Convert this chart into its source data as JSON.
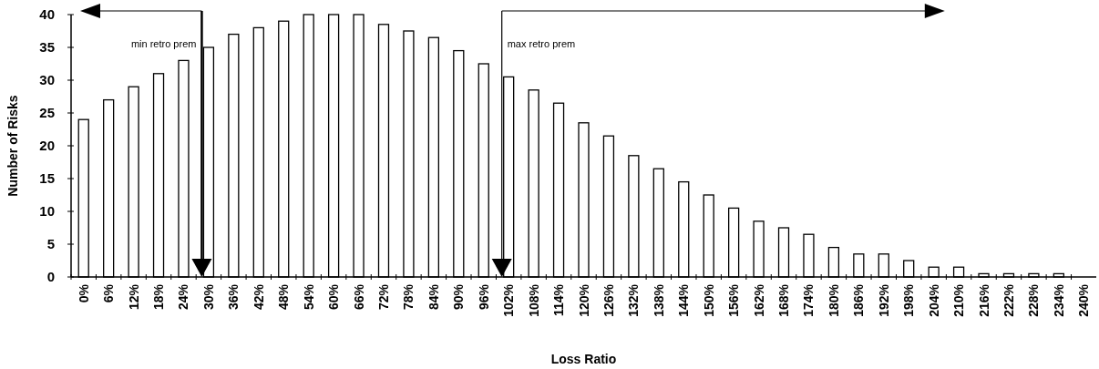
{
  "chart_data": {
    "type": "bar",
    "xlabel": "Loss Ratio",
    "ylabel": "Number of Risks",
    "categories": [
      "0%",
      "6%",
      "12%",
      "18%",
      "24%",
      "30%",
      "36%",
      "42%",
      "48%",
      "54%",
      "60%",
      "66%",
      "72%",
      "78%",
      "84%",
      "90%",
      "96%",
      "102%",
      "108%",
      "114%",
      "120%",
      "126%",
      "132%",
      "138%",
      "144%",
      "150%",
      "156%",
      "162%",
      "168%",
      "174%",
      "180%",
      "186%",
      "192%",
      "198%",
      "204%",
      "210%",
      "216%",
      "222%",
      "228%",
      "234%",
      "240%"
    ],
    "values": [
      24,
      27,
      29,
      31,
      33,
      35,
      37,
      38,
      39,
      40,
      40,
      40,
      38.5,
      37.5,
      36.5,
      34.5,
      32.5,
      30.5,
      28.5,
      26.5,
      23.5,
      21.5,
      18.5,
      16.5,
      14.5,
      12.5,
      10.5,
      8.5,
      7.5,
      6.5,
      4.5,
      3.5,
      3.5,
      2.5,
      1.5,
      1.5,
      0.5,
      0.5,
      0.5,
      0.5,
      null
    ],
    "color": "#ffffff",
    "ylim": [
      0,
      40
    ],
    "yticks": [
      0,
      5,
      10,
      15,
      20,
      25,
      30,
      35,
      40
    ],
    "grid": false,
    "ref_lines": [
      {
        "axis": "x",
        "value": "30%",
        "label": "min retro prem",
        "color": "#000000"
      },
      {
        "axis": "x",
        "value": "102%",
        "label": "max retro prem",
        "color": "#000000"
      }
    ]
  }
}
